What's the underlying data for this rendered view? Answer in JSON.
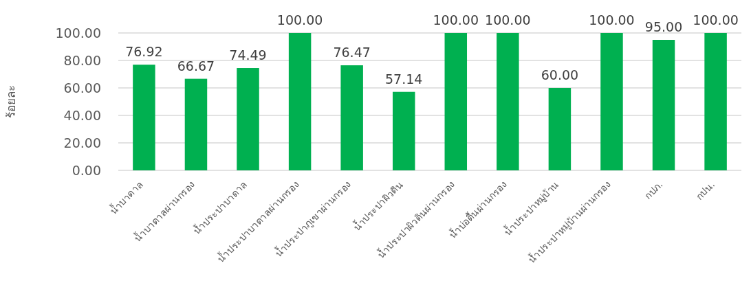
{
  "chart_data": {
    "type": "bar",
    "ylabel": "ร้อยละ",
    "categories": [
      "น้ำบาดาล",
      "น้ำบาดาลผ่านกรอง",
      "น้ำประปาบาดาล",
      "น้ำประปาบาดาลผ่านกรอง",
      "น้ำประปาภูเขาผ่านกรอง",
      "น้ำประปาผิวดิน",
      "น้ำประปาผิวดินผ่านกรอง",
      "น้ำบ่อตื้นผ่านกรอง",
      "น้ำประปาหมู่บ้าน",
      "น้ำประปาหมู่บ้านผ่านกรอง",
      "กปภ.",
      "กปน."
    ],
    "values": [
      76.92,
      66.67,
      74.49,
      100.0,
      76.47,
      57.14,
      100.0,
      100.0,
      60.0,
      100.0,
      95.0,
      100.0
    ],
    "value_labels": [
      "76.92",
      "66.67",
      "74.49",
      "100.00",
      "76.47",
      "57.14",
      "100.00",
      "100.00",
      "60.00",
      "100.00",
      "95.00",
      "100.00"
    ],
    "color": "#00b050",
    "ylim": [
      0,
      100
    ],
    "yticks": [
      {
        "value": 0,
        "label": "0.00"
      },
      {
        "value": 20,
        "label": "20.00"
      },
      {
        "value": 40,
        "label": "40.00"
      },
      {
        "value": 60,
        "label": "60.00"
      },
      {
        "value": 80,
        "label": "80.00"
      },
      {
        "value": 100,
        "label": "100.00"
      }
    ],
    "grid": "y"
  }
}
